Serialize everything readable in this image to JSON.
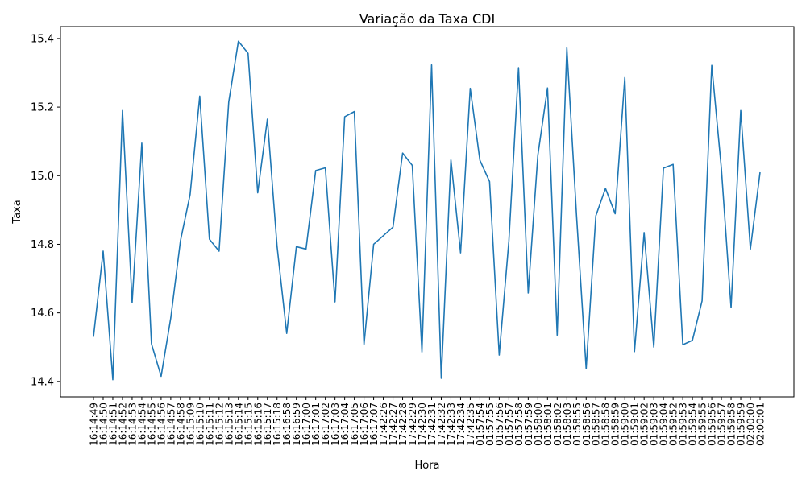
{
  "chart_data": {
    "type": "line",
    "title": "Variação da Taxa CDI",
    "xlabel": "Hora",
    "ylabel": "Taxa",
    "ylim": [
      14.355,
      15.435
    ],
    "yticks": [
      14.4,
      14.6,
      14.8,
      15.0,
      15.2,
      15.4
    ],
    "grid": false,
    "line_color": "#1f77b4",
    "x": [
      "16:14:49",
      "16:14:50",
      "16:14:51",
      "16:14:52",
      "16:14:53",
      "16:14:54",
      "16:14:55",
      "16:14:56",
      "16:14:57",
      "16:14:58",
      "16:15:09",
      "16:15:10",
      "16:15:11",
      "16:15:12",
      "16:15:13",
      "16:15:14",
      "16:15:15",
      "16:15:16",
      "16:15:17",
      "16:15:18",
      "16:16:58",
      "16:16:59",
      "16:17:00",
      "16:17:01",
      "16:17:02",
      "16:17:03",
      "16:17:04",
      "16:17:05",
      "16:17:06",
      "16:17:07",
      "17:42:26",
      "17:42:27",
      "17:42:28",
      "17:42:29",
      "17:42:30",
      "17:42:31",
      "17:42:32",
      "17:42:33",
      "17:42:34",
      "17:42:35",
      "01:57:54",
      "01:57:55",
      "01:57:56",
      "01:57:57",
      "01:57:58",
      "01:57:59",
      "01:58:00",
      "01:58:01",
      "01:58:02",
      "01:58:03",
      "01:58:55",
      "01:58:56",
      "01:58:57",
      "01:58:58",
      "01:58:59",
      "01:59:00",
      "01:59:01",
      "01:59:02",
      "01:59:03",
      "01:59:04",
      "01:59:52",
      "01:59:53",
      "01:59:54",
      "01:59:55",
      "01:59:56",
      "01:59:57",
      "01:59:58",
      "01:59:59",
      "02:00:00",
      "02:00:01"
    ],
    "y": [
      14.53,
      14.78,
      14.405,
      15.19,
      14.63,
      15.095,
      14.51,
      14.415,
      14.585,
      14.81,
      14.945,
      15.232,
      14.815,
      14.78,
      15.215,
      15.392,
      15.357,
      14.95,
      15.165,
      14.795,
      14.54,
      14.793,
      14.786,
      15.015,
      15.023,
      14.632,
      15.172,
      15.187,
      14.507,
      14.8,
      14.825,
      14.85,
      15.066,
      15.03,
      14.486,
      15.323,
      14.409,
      15.046,
      14.775,
      15.255,
      15.045,
      14.983,
      14.477,
      14.81,
      15.315,
      14.658,
      15.06,
      15.256,
      14.535,
      15.373,
      14.885,
      14.437,
      14.883,
      14.963,
      14.889,
      15.286,
      14.487,
      14.834,
      14.5,
      15.022,
      15.033,
      14.507,
      14.52,
      14.635,
      15.322,
      15.02,
      14.615,
      15.19,
      14.786,
      15.01
    ]
  }
}
